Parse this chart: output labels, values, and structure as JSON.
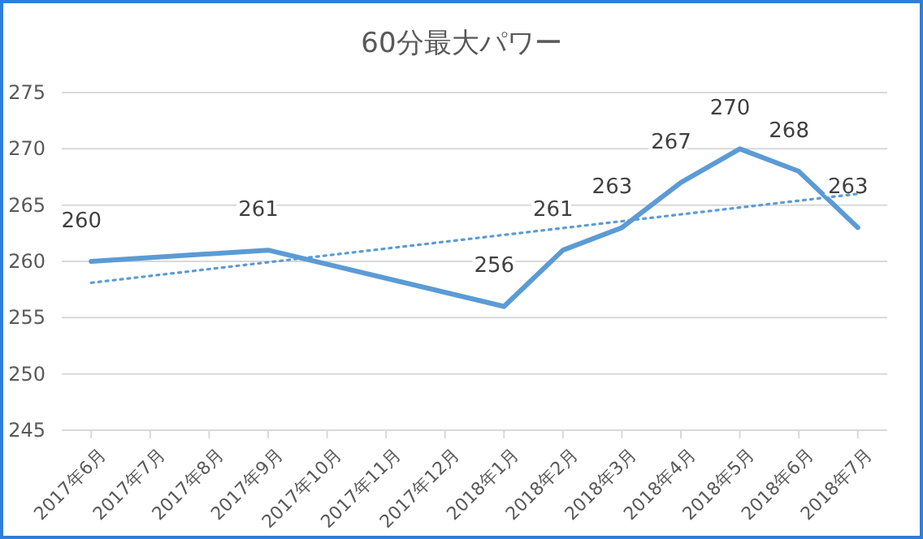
{
  "chart_data": {
    "type": "line",
    "title": "60分最大パワー",
    "categories": [
      "2017年6月",
      "2017年7月",
      "2017年8月",
      "2017年9月",
      "2017年10月",
      "2017年11月",
      "2017年12月",
      "2018年1月",
      "2018年2月",
      "2018年3月",
      "2018年4月",
      "2018年5月",
      "2018年6月",
      "2018年7月"
    ],
    "series": [
      {
        "color": "#5b9bd5",
        "x": [
          "2017年6月",
          "2017年9月",
          "2018年1月",
          "2018年2月",
          "2018年3月",
          "2018年4月",
          "2018年5月",
          "2018年6月",
          "2018年7月"
        ],
        "values": [
          260,
          261,
          256,
          261,
          263,
          267,
          270,
          268,
          263
        ],
        "value_labels": [
          "260",
          "261",
          "256",
          "261",
          "263",
          "267",
          "270",
          "268",
          "263"
        ]
      },
      {
        "type": "line",
        "color": "#5b9bd5",
        "line_style": "dotted",
        "x": [
          "2017年6月",
          "2018年7月"
        ],
        "values": [
          258.1,
          266
        ]
      }
    ],
    "ylim": [
      245,
      275
    ],
    "yticks": [
      245,
      250,
      255,
      260,
      265,
      270,
      275
    ],
    "grid": "y",
    "marker": "none"
  }
}
